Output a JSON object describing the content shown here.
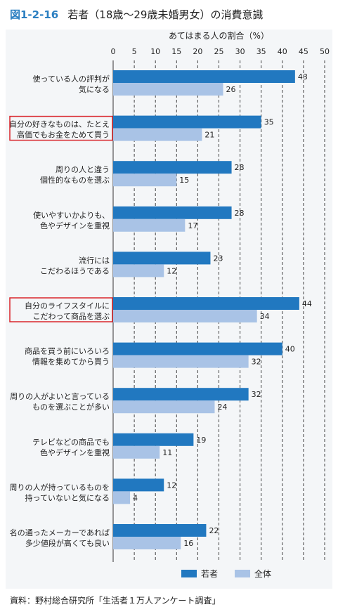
{
  "figure": {
    "number": "図1-2-16",
    "title": "若者（18歳～29歳未婚男女）の消費意識",
    "source": "資料：野村総合研究所「生活者１万人アンケート調査」"
  },
  "colors": {
    "series_young": "#2178c0",
    "series_all": "#a9c3e6",
    "highlight_box": "#d9252b"
  },
  "chart_data": {
    "type": "bar",
    "orientation": "horizontal",
    "axis_title": "あてはまる人の割合（%）",
    "xlim": [
      0,
      50
    ],
    "ticks": [
      0,
      5,
      10,
      15,
      20,
      25,
      30,
      35,
      40,
      45,
      50
    ],
    "grid": "dashed vertical lines",
    "legend_position": "bottom",
    "categories": [
      [
        "使っている人の評判が",
        "気になる"
      ],
      [
        "自分の好きなものは、たとえ",
        "高価でもお金をためて買う"
      ],
      [
        "周りの人と違う",
        "個性的なものを選ぶ"
      ],
      [
        "使いやすいかよりも、",
        "色やデザインを重視"
      ],
      [
        "流行には",
        "こだわるほうである"
      ],
      [
        "自分のライフスタイルに",
        "こだわって商品を選ぶ"
      ],
      [
        "商品を買う前にいろいろ",
        "情報を集めてから買う"
      ],
      [
        "周りの人がよいと言っている",
        "ものを選ぶことが多い"
      ],
      [
        "テレビなどの商品でも",
        "色やデザインを重視"
      ],
      [
        "周りの人が持っているものを",
        "持っていないと気になる"
      ],
      [
        "名の通ったメーカーであれば",
        "多少値段が高くても良い"
      ]
    ],
    "highlighted": [
      1,
      5
    ],
    "series": [
      {
        "name": "若者",
        "values": [
          43,
          35,
          28,
          28,
          23,
          44,
          40,
          32,
          19,
          12,
          22
        ]
      },
      {
        "name": "全体",
        "values": [
          26,
          21,
          15,
          17,
          12,
          34,
          32,
          24,
          11,
          4,
          16
        ]
      }
    ]
  }
}
